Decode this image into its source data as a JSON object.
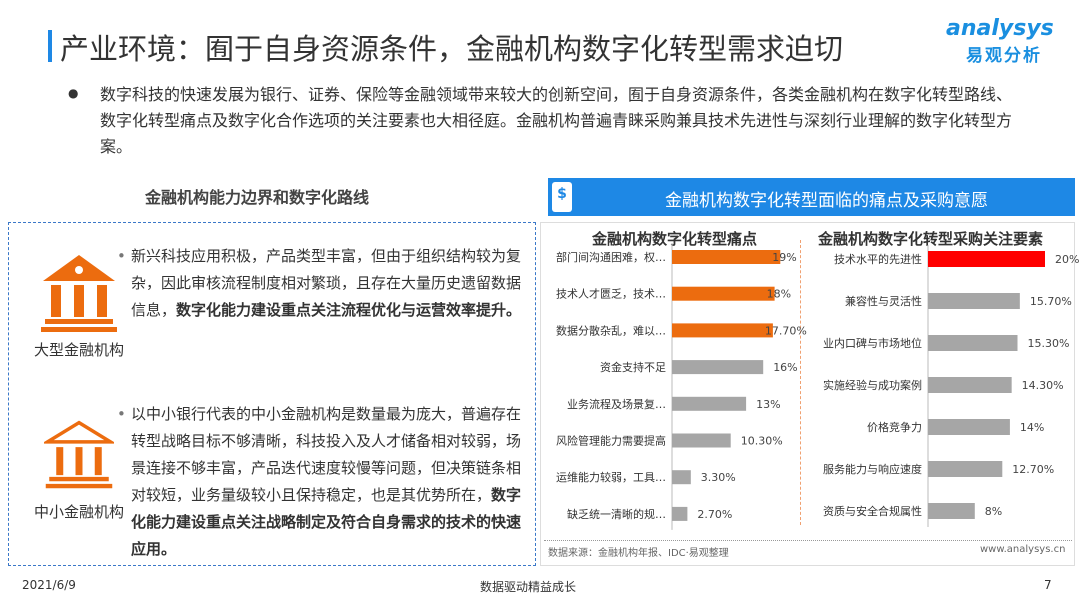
{
  "header": {
    "title": "产业环境：囿于自身资源条件，金融机构数字化转型需求迫切",
    "logo_en": "analysys",
    "logo_cn": "易观分析"
  },
  "intro": "数字科技的快速发展为银行、证券、保险等金融领域带来较大的创新空间，囿于自身资源条件，各类金融机构在数字化转型路线、数字化转型痛点及数字化合作选项的关注要素也大相径庭。金融机构普遍青睐采购兼具技术先进性与深刻行业理解的数字化转型方案。",
  "left": {
    "title": "金融机构能力边界和数字化路线",
    "items": [
      {
        "label": "大型金融机构",
        "text": "新兴科技应用积极，产品类型丰富，但由于组织结构较为复杂，因此审核流程制度相对繁琐，且存在大量历史遗留数据信息，",
        "bold": "数字化能力建设重点关注流程优化与运营效率提升。"
      },
      {
        "label": "中小金融机构",
        "text": "以中小银行代表的中小金融机构是数量最为庞大，普遍存在转型战略目标不够清晰，科技投入及人才储备相对较弱，场景连接不够丰富，产品迭代速度较慢等问题，但决策链条相对较短，业务量级较小且保持稳定，也是其优势所在，",
        "bold": "数字化能力建设重点关注战略制定及符合自身需求的技术的快速应用。"
      }
    ]
  },
  "right": {
    "title": "金融机构数字化转型面临的痛点及采购意愿",
    "icon": "dollar-icon",
    "source": "数据来源：金融机构年报、IDC·易观整理",
    "site": "www.analysys.cn"
  },
  "chart_data": [
    {
      "type": "bar",
      "orientation": "horizontal",
      "title": "金融机构数字化转型痛点",
      "categories": [
        "部门间沟通困难，权…",
        "技术人才匮乏，技术…",
        "数据分散杂乱，难以…",
        "资金支持不足",
        "业务流程及场景复…",
        "风险管理能力需要提高",
        "运维能力较弱，工具…",
        "缺乏统一清晰的规…"
      ],
      "values": [
        19,
        18,
        17.7,
        16,
        13,
        10.3,
        3.3,
        2.7
      ],
      "labels": [
        "19%",
        "18%",
        "17.70%",
        "16%",
        "13%",
        "10.30%",
        "3.30%",
        "2.70%"
      ],
      "colors": [
        "#ec6c0f",
        "#ec6c0f",
        "#ec6c0f",
        "#a6a6a6",
        "#a6a6a6",
        "#a6a6a6",
        "#a6a6a6",
        "#a6a6a6"
      ]
    },
    {
      "type": "bar",
      "orientation": "horizontal",
      "title": "金融机构数字化转型采购关注要素",
      "categories": [
        "技术水平的先进性",
        "兼容性与灵活性",
        "业内口碑与市场地位",
        "实施经验与成功案例",
        "价格竞争力",
        "服务能力与响应速度",
        "资质与安全合规属性"
      ],
      "values": [
        20,
        15.7,
        15.3,
        14.3,
        14,
        12.7,
        8
      ],
      "labels": [
        "20%",
        "15.70%",
        "15.30%",
        "14.30%",
        "14%",
        "12.70%",
        "8%"
      ],
      "colors": [
        "#ff0000",
        "#a6a6a6",
        "#a6a6a6",
        "#a6a6a6",
        "#a6a6a6",
        "#a6a6a6",
        "#a6a6a6"
      ]
    }
  ],
  "footer": {
    "date": "2021/6/9",
    "slogan": "数据驱动精益成长",
    "page": "7"
  }
}
